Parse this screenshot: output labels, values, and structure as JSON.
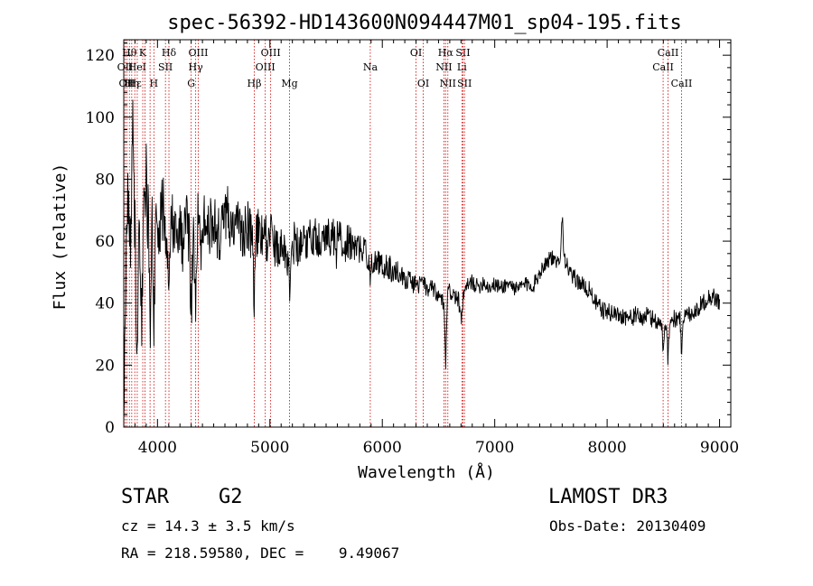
{
  "chart_data": {
    "type": "line",
    "title": "spec-56392-HD143600N094447M01_sp04-195.fits",
    "xlabel": "Wavelength (Å)",
    "ylabel": "Flux (relative)",
    "xlim": [
      3700,
      9100
    ],
    "ylim": [
      0,
      125
    ],
    "xticks": [
      4000,
      5000,
      6000,
      7000,
      8000,
      9000
    ],
    "yticks": [
      0,
      20,
      40,
      60,
      80,
      100,
      120
    ],
    "line_color": "#000000",
    "marker_color": "#cc0000",
    "continuum": [
      [
        3700,
        10
      ],
      [
        3720,
        48
      ],
      [
        3740,
        78
      ],
      [
        3760,
        60
      ],
      [
        3780,
        85
      ],
      [
        3800,
        68
      ],
      [
        3830,
        72
      ],
      [
        3860,
        64
      ],
      [
        3900,
        70
      ],
      [
        3950,
        66
      ],
      [
        4000,
        62
      ],
      [
        4050,
        70
      ],
      [
        4100,
        64
      ],
      [
        4150,
        68
      ],
      [
        4200,
        62
      ],
      [
        4250,
        66
      ],
      [
        4300,
        60
      ],
      [
        4350,
        66
      ],
      [
        4400,
        68
      ],
      [
        4450,
        64
      ],
      [
        4500,
        66
      ],
      [
        4550,
        62
      ],
      [
        4600,
        66
      ],
      [
        4650,
        64
      ],
      [
        4700,
        66
      ],
      [
        4750,
        62
      ],
      [
        4800,
        65
      ],
      [
        4850,
        61
      ],
      [
        4900,
        63
      ],
      [
        4950,
        60
      ],
      [
        5000,
        62
      ],
      [
        5050,
        58
      ],
      [
        5100,
        60
      ],
      [
        5150,
        57
      ],
      [
        5200,
        60
      ],
      [
        5250,
        58
      ],
      [
        5300,
        62
      ],
      [
        5350,
        60
      ],
      [
        5400,
        63
      ],
      [
        5450,
        60
      ],
      [
        5500,
        62
      ],
      [
        5550,
        60
      ],
      [
        5600,
        64
      ],
      [
        5650,
        58
      ],
      [
        5700,
        60
      ],
      [
        5750,
        57
      ],
      [
        5800,
        58
      ],
      [
        5850,
        56
      ],
      [
        5900,
        55
      ],
      [
        5950,
        53
      ],
      [
        6000,
        52
      ],
      [
        6050,
        52
      ],
      [
        6100,
        50
      ],
      [
        6150,
        50
      ],
      [
        6200,
        48
      ],
      [
        6250,
        47
      ],
      [
        6300,
        46
      ],
      [
        6350,
        46
      ],
      [
        6400,
        45
      ],
      [
        6450,
        44
      ],
      [
        6500,
        42
      ],
      [
        6550,
        40
      ],
      [
        6600,
        44
      ],
      [
        6650,
        42
      ],
      [
        6700,
        40
      ],
      [
        6750,
        45
      ],
      [
        6800,
        47
      ],
      [
        6850,
        45
      ],
      [
        6900,
        47
      ],
      [
        6950,
        45
      ],
      [
        7000,
        46
      ],
      [
        7050,
        45
      ],
      [
        7100,
        46
      ],
      [
        7150,
        46
      ],
      [
        7200,
        44
      ],
      [
        7250,
        46
      ],
      [
        7300,
        46
      ],
      [
        7350,
        46
      ],
      [
        7400,
        50
      ],
      [
        7450,
        53
      ],
      [
        7500,
        55
      ],
      [
        7550,
        52
      ],
      [
        7600,
        58
      ],
      [
        7650,
        51
      ],
      [
        7700,
        48
      ],
      [
        7750,
        47
      ],
      [
        7800,
        45
      ],
      [
        7850,
        44
      ],
      [
        7900,
        40
      ],
      [
        7950,
        38
      ],
      [
        8000,
        37
      ],
      [
        8050,
        37
      ],
      [
        8100,
        36
      ],
      [
        8150,
        36
      ],
      [
        8200,
        35
      ],
      [
        8250,
        36
      ],
      [
        8300,
        35
      ],
      [
        8350,
        36
      ],
      [
        8400,
        35
      ],
      [
        8450,
        34
      ],
      [
        8500,
        33
      ],
      [
        8550,
        34
      ],
      [
        8600,
        35
      ],
      [
        8650,
        35
      ],
      [
        8700,
        36
      ],
      [
        8750,
        37
      ],
      [
        8800,
        38
      ],
      [
        8850,
        40
      ],
      [
        8900,
        42
      ],
      [
        8950,
        42
      ],
      [
        9000,
        40
      ]
    ],
    "noise_scale": [
      [
        3700,
        14
      ],
      [
        4600,
        9
      ],
      [
        5600,
        6
      ],
      [
        6200,
        3.5
      ],
      [
        7000,
        2.5
      ],
      [
        8000,
        3
      ],
      [
        9000,
        3
      ]
    ],
    "absorption_features": [
      [
        3820,
        15,
        38
      ],
      [
        3860,
        10,
        30
      ],
      [
        3934,
        8,
        40
      ],
      [
        3968,
        8,
        35
      ],
      [
        4102,
        10,
        18
      ],
      [
        4230,
        6,
        12
      ],
      [
        4300,
        10,
        22
      ],
      [
        4340,
        10,
        28
      ],
      [
        4385,
        6,
        15
      ],
      [
        4860,
        10,
        18
      ],
      [
        5175,
        15,
        12
      ],
      [
        5590,
        6,
        12
      ],
      [
        5890,
        8,
        8
      ],
      [
        6563,
        10,
        20
      ],
      [
        6700,
        12,
        6
      ],
      [
        8498,
        8,
        10
      ],
      [
        8542,
        8,
        12
      ],
      [
        8662,
        8,
        10
      ]
    ],
    "emission_features": [
      [
        3780,
        10,
        18
      ],
      [
        3900,
        8,
        12
      ],
      [
        4620,
        10,
        10
      ],
      [
        7600,
        10,
        10
      ]
    ],
    "line_markers": [
      {
        "wl": 3712,
        "label": "OII",
        "row": 1
      },
      {
        "wl": 3727,
        "label": "OII",
        "row": 2
      },
      {
        "wl": 3750,
        "label": "Hθ",
        "row": 0
      },
      {
        "wl": 3771,
        "label": "Hη",
        "row": 2
      },
      {
        "wl": 3798,
        "label": "Hε",
        "row": 2
      },
      {
        "wl": 3820,
        "label": "HeI",
        "row": 1
      },
      {
        "wl": 3869,
        "label": "K",
        "row": 0
      },
      {
        "wl": 3889,
        "label": "",
        "row": 0
      },
      {
        "wl": 3934,
        "label": "",
        "row": 0
      },
      {
        "wl": 3968,
        "label": "H",
        "row": 2
      },
      {
        "wl": 4071,
        "label": "SII",
        "row": 1
      },
      {
        "wl": 4102,
        "label": "Hδ",
        "row": 0
      },
      {
        "wl": 4300,
        "label": "G",
        "row": 2
      },
      {
        "wl": 4340,
        "label": "Hγ",
        "row": 1
      },
      {
        "wl": 4363,
        "label": "OIII",
        "row": 0
      },
      {
        "wl": 4861,
        "label": "Hβ",
        "row": 2
      },
      {
        "wl": 4959,
        "label": "OIII",
        "row": 1
      },
      {
        "wl": 5007,
        "label": "OIII",
        "row": 0
      },
      {
        "wl": 5175,
        "label": "Mg",
        "row": 2
      },
      {
        "wl": 5893,
        "label": "Na",
        "row": 1
      },
      {
        "wl": 6300,
        "label": "OI",
        "row": 0
      },
      {
        "wl": 6364,
        "label": "OI",
        "row": 2
      },
      {
        "wl": 6548,
        "label": "NII",
        "row": 1
      },
      {
        "wl": 6563,
        "label": "Hα",
        "row": 0
      },
      {
        "wl": 6583,
        "label": "NII",
        "row": 2
      },
      {
        "wl": 6708,
        "label": "Li",
        "row": 1
      },
      {
        "wl": 6717,
        "label": "SII",
        "row": 0
      },
      {
        "wl": 6731,
        "label": "SII",
        "row": 2
      },
      {
        "wl": 8498,
        "label": "CaII",
        "row": 1
      },
      {
        "wl": 8542,
        "label": "CaII",
        "row": 0
      },
      {
        "wl": 8662,
        "label": "CaII",
        "row": 2
      }
    ]
  },
  "footer": {
    "object_class": "STAR",
    "subclass": "G2",
    "survey": "LAMOST DR3",
    "redshift": "cz = 14.3 ± 3.5 km/s",
    "obs_date": "Obs-Date: 20130409",
    "coords": "RA = 218.59580, DEC =    9.49067"
  }
}
